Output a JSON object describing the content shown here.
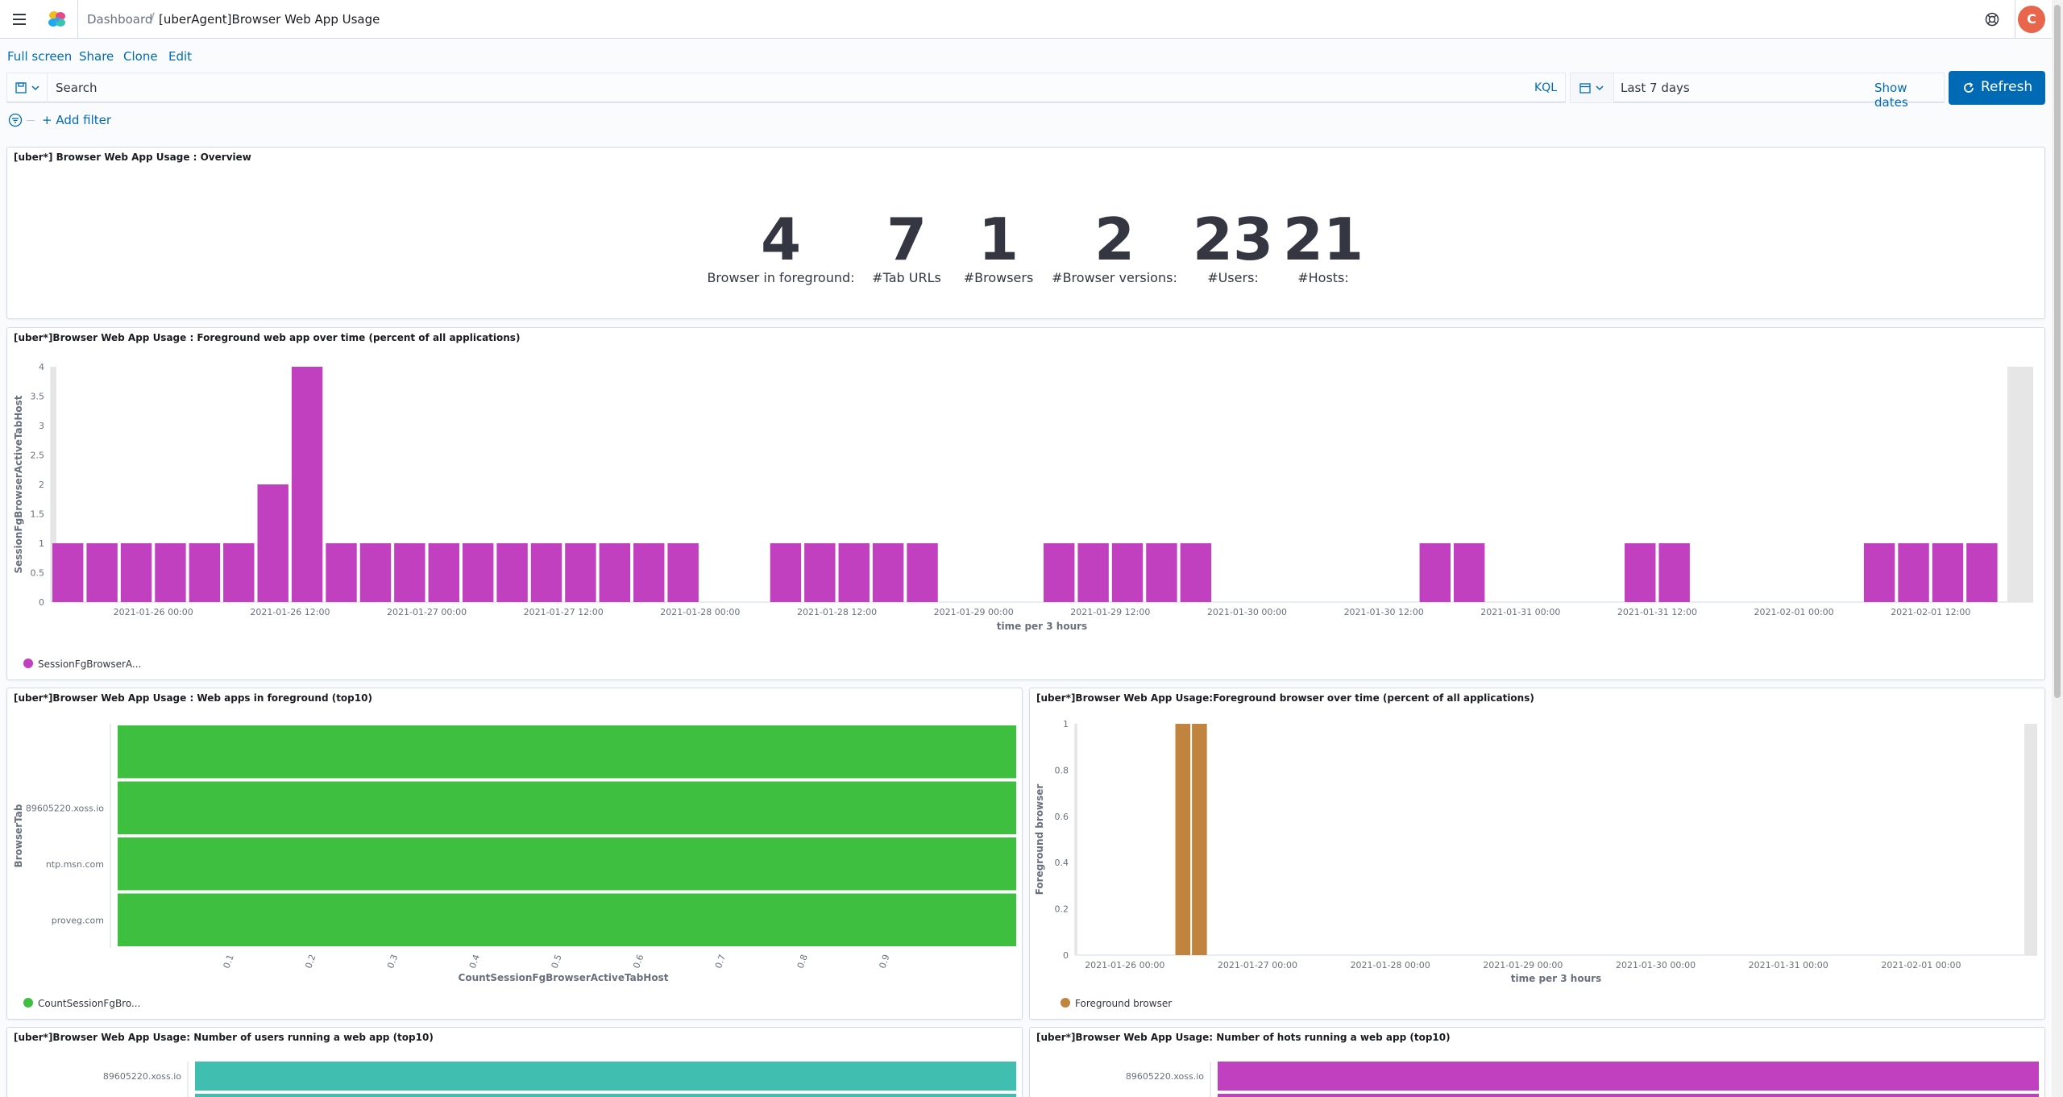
{
  "header": {
    "breadcrumb_root": "Dashboard",
    "breadcrumb_current": "[uberAgent]Browser Web App Usage",
    "avatar_initial": "C",
    "icons": {
      "menu": "hamburger-menu-icon",
      "logo": "elastic-logo",
      "help": "help-icon"
    }
  },
  "actions": {
    "full_screen": "Full screen",
    "share": "Share",
    "clone": "Clone",
    "edit": "Edit"
  },
  "query": {
    "placeholder": "Search",
    "language": "KQL",
    "date_range": "Last 7 days",
    "show_dates": "Show dates",
    "refresh": "Refresh"
  },
  "filters": {
    "add_filter": "+ Add filter"
  },
  "panels": {
    "overview": {
      "title": "[uber*] Browser Web App Usage : Overview",
      "metrics": [
        {
          "value": "4",
          "label": "Browser in foreground:"
        },
        {
          "value": "7",
          "label": "#Tab URLs"
        },
        {
          "value": "1",
          "label": "#Browsers"
        },
        {
          "value": "2",
          "label": "#Browser versions:"
        },
        {
          "value": "23",
          "label": "#Users:"
        },
        {
          "value": "21",
          "label": "#Hosts:"
        }
      ]
    },
    "foreground_web_app": {
      "title": "[uber*]Browser Web App Usage : Foreground web app over time (percent of all applications)",
      "legend": "SessionFgBrowserA..."
    },
    "web_apps_top10": {
      "title": "[uber*]Browser Web App Usage : Web apps in foreground (top10)",
      "legend": "CountSessionFgBro..."
    },
    "foreground_browser": {
      "title": "[uber*]Browser Web App Usage:Foreground browser over time (percent of all applications)",
      "legend": "Foreground browser"
    },
    "users_top10": {
      "title": "[uber*]Browser Web App Usage: Number of users running a web app (top10)"
    },
    "hosts_top10": {
      "title": "[uber*]Browser Web App Usage: Number of hots running a web app (top10)"
    }
  },
  "chart_data": [
    {
      "type": "bar",
      "title": "[uber*]Browser Web App Usage : Foreground web app over time (percent of all applications)",
      "xlabel": "time per 3 hours",
      "ylabel": "SessionFgBrowserActiveTabHost",
      "ylim": [
        0,
        4
      ],
      "yticks": [
        "0",
        "0.5",
        "1",
        "1.5",
        "2",
        "2.5",
        "3",
        "3.5",
        "4"
      ],
      "xticks": [
        "2021-01-26 00:00",
        "2021-01-26 12:00",
        "2021-01-27 00:00",
        "2021-01-27 12:00",
        "2021-01-28 00:00",
        "2021-01-28 12:00",
        "2021-01-29 00:00",
        "2021-01-29 12:00",
        "2021-01-30 00:00",
        "2021-01-30 12:00",
        "2021-01-31 00:00",
        "2021-01-31 12:00",
        "2021-02-01 00:00",
        "2021-02-01 12:00"
      ],
      "color": "#c040bf",
      "series": [
        {
          "name": "SessionFgBrowserA...",
          "bin_index": [
            0,
            1,
            2,
            3,
            4,
            5,
            6,
            7,
            8,
            9,
            10,
            11,
            12,
            13,
            14,
            15,
            16,
            17,
            18,
            21,
            22,
            23,
            24,
            25,
            29,
            30,
            31,
            32,
            33,
            40,
            41,
            46,
            47,
            53,
            54,
            55,
            56
          ],
          "values": [
            1,
            1,
            1,
            1,
            1,
            1,
            2,
            4,
            1,
            1,
            1,
            1,
            1,
            1,
            1,
            1,
            1,
            1,
            1,
            1,
            1,
            1,
            1,
            1,
            1,
            1,
            1,
            1,
            1,
            1,
            1,
            1,
            1,
            1,
            1,
            1,
            1
          ]
        }
      ]
    },
    {
      "type": "bar",
      "title": "[uber*]Browser Web App Usage : Web apps in foreground (top10)",
      "orientation": "horizontal",
      "xlabel": "CountSessionFgBrowserActiveTabHost",
      "ylabel": "BrowserTab",
      "xticks": [
        "0.1",
        "0.2",
        "0.3",
        "0.4",
        "0.5",
        "0.6",
        "0.7",
        "0.8",
        "0.9"
      ],
      "color": "#3fbf40",
      "categories": [
        "",
        "89605220.xoss.io",
        "ntp.msn.com",
        "proveg.com"
      ],
      "series": [
        {
          "name": "CountSessionFgBro...",
          "values": [
            1,
            1,
            1,
            1
          ]
        }
      ]
    },
    {
      "type": "bar",
      "title": "[uber*]Browser Web App Usage:Foreground browser over time (percent of all applications)",
      "xlabel": "time per 3 hours",
      "ylabel": "Foreground browser",
      "ylim": [
        0,
        1
      ],
      "yticks": [
        "0",
        "0.2",
        "0.4",
        "0.6",
        "0.8",
        "1"
      ],
      "xticks": [
        "2021-01-26 00:00",
        "2021-01-27 00:00",
        "2021-01-28 00:00",
        "2021-01-29 00:00",
        "2021-01-30 00:00",
        "2021-01-31 00:00",
        "2021-02-01 00:00"
      ],
      "color": "#c0843f",
      "series": [
        {
          "name": "Foreground browser",
          "bin_index": [
            6,
            7
          ],
          "values": [
            1,
            1
          ]
        }
      ]
    },
    {
      "type": "bar",
      "title": "[uber*]Browser Web App Usage: Number of users running a web app (top10)",
      "orientation": "horizontal",
      "color": "#40bfb0",
      "categories": [
        "89605220.xoss.io"
      ],
      "values": [
        1
      ]
    },
    {
      "type": "bar",
      "title": "[uber*]Browser Web App Usage: Number of hots running a web app (top10)",
      "orientation": "horizontal",
      "color": "#c040bf",
      "categories": [
        "89605220.xoss.io"
      ],
      "values": [
        1
      ]
    }
  ]
}
